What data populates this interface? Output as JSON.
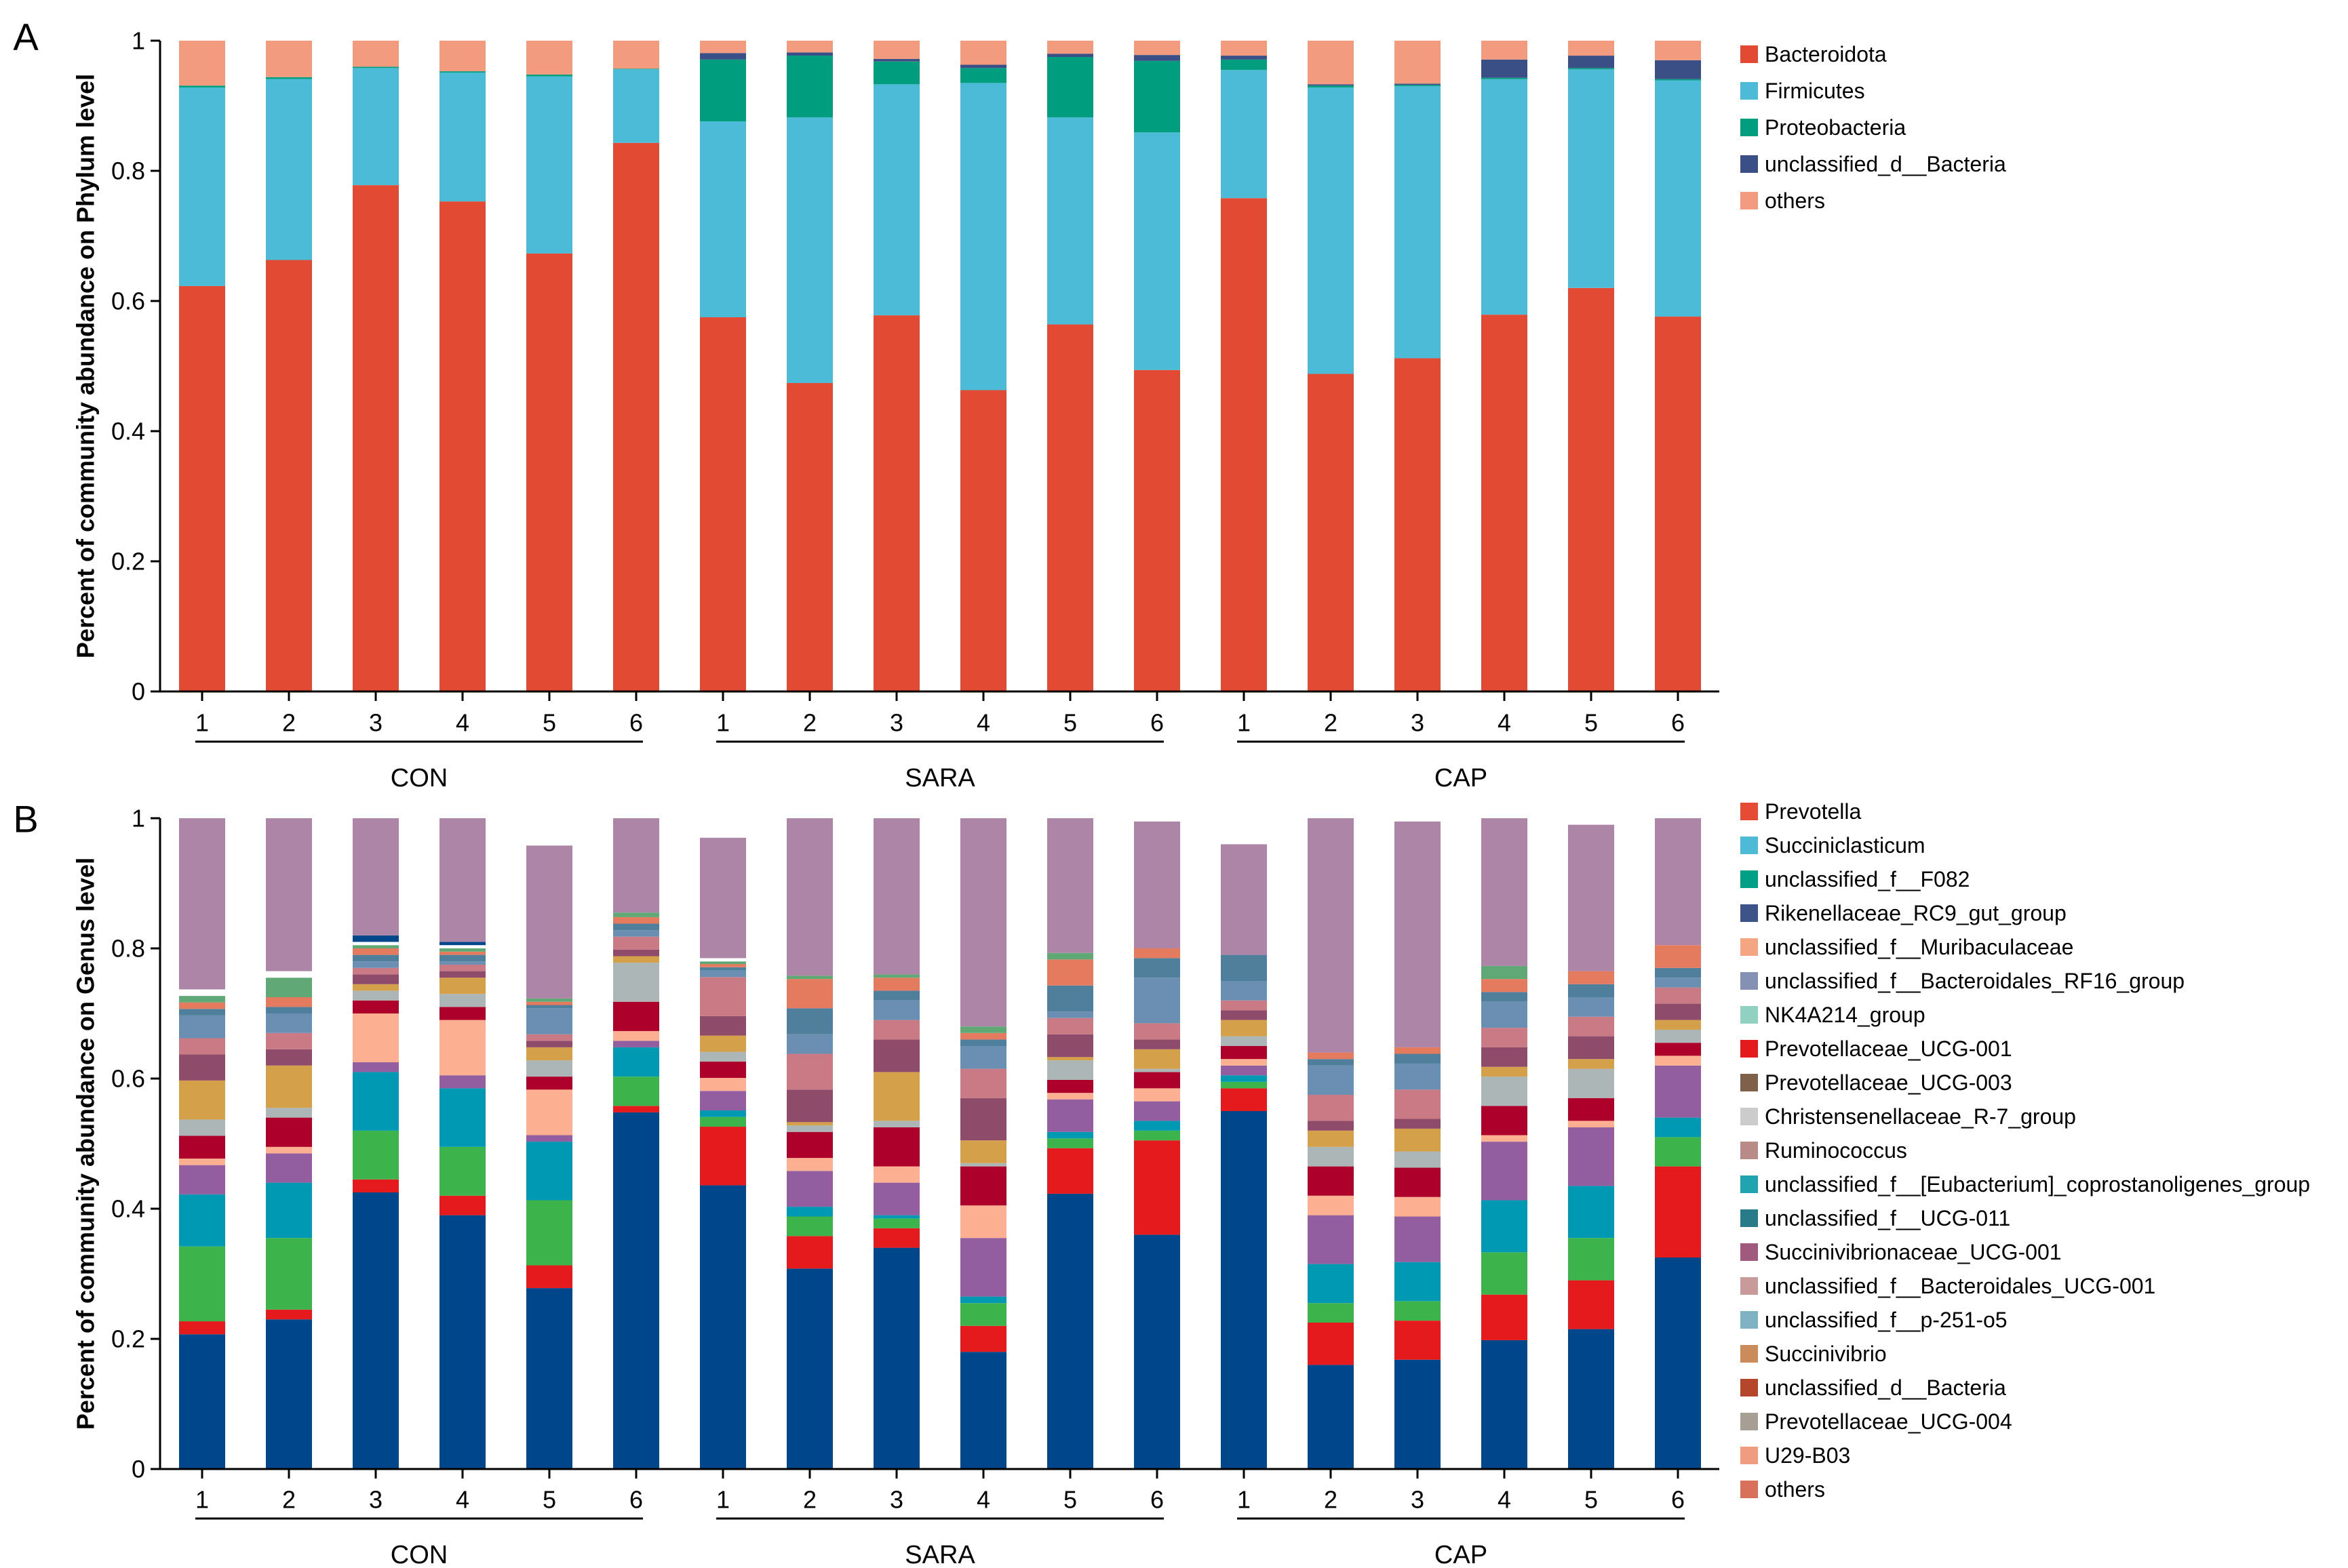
{
  "colors": {
    "phylum": [
      "#e34a33",
      "#4cbbd7",
      "#009e7e",
      "#3b4f87",
      "#f39b7f"
    ],
    "genus": [
      "#e64b35",
      "#4dbbd5",
      "#00a087",
      "#3c5488",
      "#f4a582",
      "#8491b4",
      "#91d1c2",
      "#e41a1c",
      "#7e6148",
      "#cccccc",
      "#b88b86",
      "#20a4b0",
      "#2a7b8a",
      "#a05a7e",
      "#c99a9a",
      "#7fb3c4",
      "#c98c5a",
      "#b5462c",
      "#a89f94",
      "#f09c7e",
      "#d9705c"
    ],
    "genus_bottom": [
      "#00468b",
      "#e41a1c",
      "#3cb44b",
      "#0099b4",
      "#925e9f",
      "#fdaf91",
      "#ad002a",
      "#adb6b6",
      "#d4a04a",
      "#8f4c6a",
      "#c97a85",
      "#6a8fb3",
      "#4f7f9a",
      "#e47b5f",
      "#60a876",
      "#ffffff"
    ],
    "genus_top": "#ad85a6"
  },
  "chart_data": [
    {
      "type": "bar",
      "stacked": true,
      "panel_label": "A",
      "ylabel": "Percent of community abundance on Phylum level",
      "ylim": [
        0,
        1
      ],
      "yticks": [
        "0",
        "0.2",
        "0.4",
        "0.6",
        "0.8",
        "1"
      ],
      "categories": [
        "1",
        "2",
        "3",
        "4",
        "5",
        "6",
        "1",
        "2",
        "3",
        "4",
        "5",
        "6",
        "1",
        "2",
        "3",
        "4",
        "5",
        "6"
      ],
      "groups": [
        {
          "name": "CON",
          "from": 0,
          "to": 5
        },
        {
          "name": "SARA",
          "from": 6,
          "to": 11
        },
        {
          "name": "CAP",
          "from": 12,
          "to": 17
        }
      ],
      "legend_position": "right",
      "series": [
        {
          "name": "Bacteroidota",
          "values": [
            0.623,
            0.663,
            0.778,
            0.753,
            0.673,
            0.843,
            0.575,
            0.474,
            0.578,
            0.463,
            0.564,
            0.494,
            0.758,
            0.488,
            0.512,
            0.579,
            0.62,
            0.576
          ]
        },
        {
          "name": "Firmicutes",
          "values": [
            0.305,
            0.278,
            0.18,
            0.198,
            0.272,
            0.113,
            0.301,
            0.408,
            0.355,
            0.472,
            0.318,
            0.365,
            0.197,
            0.44,
            0.418,
            0.362,
            0.336,
            0.363
          ]
        },
        {
          "name": "Proteobacteria",
          "values": [
            0.003,
            0.003,
            0.002,
            0.002,
            0.003,
            0.001,
            0.095,
            0.095,
            0.035,
            0.023,
            0.093,
            0.11,
            0.016,
            0.003,
            0.002,
            0.002,
            0.002,
            0.002
          ]
        },
        {
          "name": "unclassified_d__Bacteria",
          "values": [
            0,
            0,
            0,
            0,
            0,
            0,
            0.01,
            0.005,
            0.004,
            0.005,
            0.005,
            0.009,
            0.006,
            0.002,
            0.002,
            0.028,
            0.019,
            0.029
          ]
        },
        {
          "name": "others",
          "values": [
            0.069,
            0.056,
            0.04,
            0.047,
            0.052,
            0.043,
            0.019,
            0.018,
            0.028,
            0.037,
            0.02,
            0.022,
            0.023,
            0.067,
            0.066,
            0.029,
            0.023,
            0.03
          ]
        }
      ]
    },
    {
      "type": "bar",
      "stacked": true,
      "panel_label": "B",
      "ylabel": "Percent of community abundance on Genus level",
      "ylim": [
        0,
        1
      ],
      "yticks": [
        "0",
        "0.2",
        "0.4",
        "0.6",
        "0.8",
        "1"
      ],
      "categories": [
        "1",
        "2",
        "3",
        "4",
        "5",
        "6",
        "1",
        "2",
        "3",
        "4",
        "5",
        "6",
        "1",
        "2",
        "3",
        "4",
        "5",
        "6"
      ],
      "groups": [
        {
          "name": "CON",
          "from": 0,
          "to": 5
        },
        {
          "name": "SARA",
          "from": 6,
          "to": 11
        },
        {
          "name": "CAP",
          "from": 12,
          "to": 17
        }
      ],
      "legend_position": "right",
      "legend": [
        "Prevotella",
        "Succiniclasticum",
        "unclassified_f__F082",
        "Rikenellaceae_RC9_gut_group",
        "unclassified_f__Muribaculaceae",
        "unclassified_f__Bacteroidales_RF16_group",
        "NK4A214_group",
        "Prevotellaceae_UCG-001",
        "Prevotellaceae_UCG-003",
        "Christensenellaceae_R-7_group",
        "Ruminococcus",
        "unclassified_f__[Eubacterium]_coprostanoligenes_group",
        "unclassified_f__UCG-011",
        "Succinivibrionaceae_UCG-001",
        "unclassified_f__Bacteroidales_UCG-001",
        "unclassified_f__p-251-o5",
        "Succinivibrio",
        "unclassified_d__Bacteria",
        "Prevotellaceae_UCG-004",
        "U29-B03",
        "others"
      ],
      "stacks": [
        [
          0.207,
          0.02,
          0.115,
          0.08,
          0.045,
          0.01,
          0.035,
          0.025,
          0.06,
          0.04,
          0.025,
          0.035,
          0.01,
          0.01,
          0.01,
          0.01,
          0.263
        ],
        [
          0.23,
          0.015,
          0.11,
          0.085,
          0.045,
          0.01,
          0.045,
          0.015,
          0.065,
          0.025,
          0.025,
          0.03,
          0.01,
          0.015,
          0.03,
          0.01,
          0.235
        ],
        [
          0.425,
          0.02,
          0.075,
          0.09,
          0.015,
          0.075,
          0.02,
          0.015,
          0.01,
          0.015,
          0.01,
          0.01,
          0.01,
          0.01,
          0.005,
          0.005,
          0.01,
          0.18
        ],
        [
          0.39,
          0.03,
          0.075,
          0.09,
          0.02,
          0.085,
          0.02,
          0.02,
          0.025,
          0.01,
          0.01,
          0.005,
          0.01,
          0.005,
          0.005,
          0.005,
          0.005,
          0.19
        ],
        [
          0.278,
          0.035,
          0.1,
          0.09,
          0.01,
          0.07,
          0.02,
          0.025,
          0.02,
          0.01,
          0.01,
          0.04,
          0.005,
          0.005,
          0.005,
          0.235
        ],
        [
          0.548,
          0.01,
          0.045,
          0.045,
          0.01,
          0.015,
          0.045,
          0.06,
          0.01,
          0.01,
          0.02,
          0.01,
          0.01,
          0.01,
          0.007,
          0.145
        ],
        [
          0.436,
          0.09,
          0.015,
          0.01,
          0.03,
          0.02,
          0.025,
          0.015,
          0.025,
          0.03,
          0.06,
          0.01,
          0.005,
          0.005,
          0.004,
          0.005,
          0.185
        ],
        [
          0.308,
          0.05,
          0.03,
          0.015,
          0.055,
          0.02,
          0.04,
          0.01,
          0.005,
          0.05,
          0.055,
          0.03,
          0.04,
          0.045,
          0.005,
          0.247
        ],
        [
          0.34,
          0.03,
          0.015,
          0.005,
          0.05,
          0.025,
          0.06,
          0.01,
          0.075,
          0.05,
          0.03,
          0.03,
          0.015,
          0.02,
          0.005,
          0.24
        ],
        [
          0.18,
          0.04,
          0.035,
          0.01,
          0.09,
          0.05,
          0.06,
          0.005,
          0.035,
          0.065,
          0.045,
          0.035,
          0.01,
          0.01,
          0.01,
          0.32
        ],
        [
          0.423,
          0.07,
          0.015,
          0.01,
          0.05,
          0.01,
          0.02,
          0.03,
          0.005,
          0.035,
          0.025,
          0.01,
          0.04,
          0.04,
          0.01,
          0.207
        ],
        [
          0.36,
          0.145,
          0.015,
          0.015,
          0.03,
          0.02,
          0.025,
          0.005,
          0.03,
          0.015,
          0.025,
          0.07,
          0.03,
          0.015,
          0.195
        ],
        [
          0.55,
          0.035,
          0.01,
          0.01,
          0.015,
          0.01,
          0.02,
          0.015,
          0.025,
          0.015,
          0.015,
          0.03,
          0.04,
          0.17
        ],
        [
          0.16,
          0.065,
          0.03,
          0.06,
          0.075,
          0.03,
          0.045,
          0.03,
          0.025,
          0.015,
          0.04,
          0.045,
          0.01,
          0.01,
          0.36
        ],
        [
          0.168,
          0.06,
          0.03,
          0.06,
          0.07,
          0.03,
          0.045,
          0.025,
          0.035,
          0.015,
          0.045,
          0.04,
          0.015,
          0.01,
          0.347
        ],
        [
          0.198,
          0.07,
          0.065,
          0.08,
          0.09,
          0.01,
          0.045,
          0.045,
          0.015,
          0.03,
          0.03,
          0.04,
          0.015,
          0.02,
          0.02,
          0.227
        ],
        [
          0.215,
          0.075,
          0.065,
          0.08,
          0.09,
          0.01,
          0.035,
          0.045,
          0.015,
          0.035,
          0.03,
          0.03,
          0.02,
          0.02,
          0.225
        ],
        [
          0.325,
          0.14,
          0.045,
          0.03,
          0.08,
          0.015,
          0.02,
          0.02,
          0.015,
          0.025,
          0.025,
          0.015,
          0.015,
          0.035,
          0.195
        ]
      ]
    }
  ]
}
